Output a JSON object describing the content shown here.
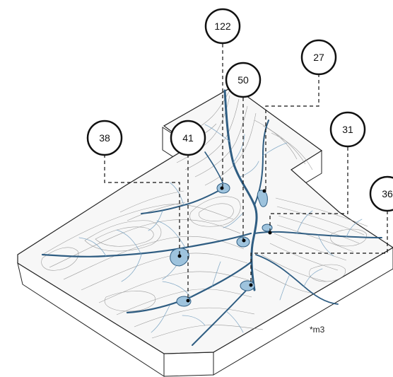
{
  "diagram": {
    "unit_label": "*m3",
    "callouts": [
      {
        "id": "c122",
        "label": "122"
      },
      {
        "id": "c50",
        "label": "50"
      },
      {
        "id": "c27",
        "label": "27"
      },
      {
        "id": "c41",
        "label": "41"
      },
      {
        "id": "c38",
        "label": "38"
      },
      {
        "id": "c31",
        "label": "31"
      },
      {
        "id": "c36",
        "label": "36"
      }
    ],
    "colors": {
      "stream": "#2f5d82",
      "stream_light": "#7aa3c2",
      "pond_fill": "#9ec3dd",
      "contour": "#888888",
      "outline": "#222222",
      "badge_stroke": "#111111"
    }
  }
}
